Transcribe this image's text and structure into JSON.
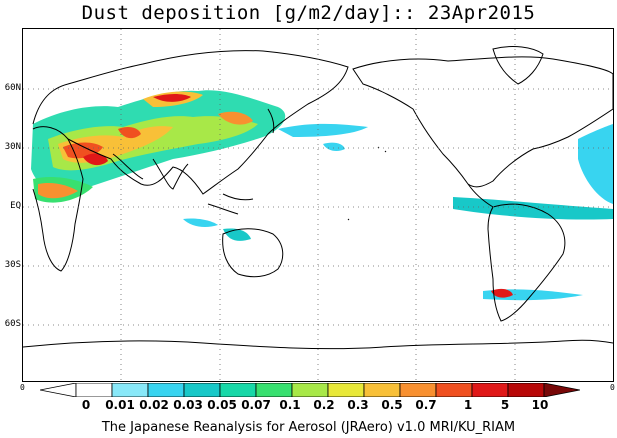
{
  "title": "Dust deposition [g/m2/day]:: 23Apr2015",
  "lat_labels": [
    {
      "text": "60N",
      "lat": 60
    },
    {
      "text": "30N",
      "lat": 30
    },
    {
      "text": "EQ",
      "lat": 0
    },
    {
      "text": "30S",
      "lat": -30
    },
    {
      "text": "60S",
      "lat": -60
    }
  ],
  "edge_labels": {
    "left": "0",
    "right": "0"
  },
  "colorbar": {
    "levels": [
      "0",
      "0.01",
      "0.02",
      "0.03",
      "0.05",
      "0.07",
      "0.1",
      "0.2",
      "0.3",
      "0.5",
      "0.7",
      "1",
      "5",
      "10"
    ],
    "colors": [
      "#ffffff",
      "#ffffff",
      "#88e8f8",
      "#38d4f0",
      "#18c8c8",
      "#18d8a8",
      "#38e070",
      "#a8e848",
      "#e8e838",
      "#f8c038",
      "#f89030",
      "#f05020",
      "#e01818",
      "#b80808",
      "#780808"
    ]
  },
  "credit": "The Japanese Reanalysis for Aerosol (JRAero) v1.0 MRI/KU_RIAM"
}
